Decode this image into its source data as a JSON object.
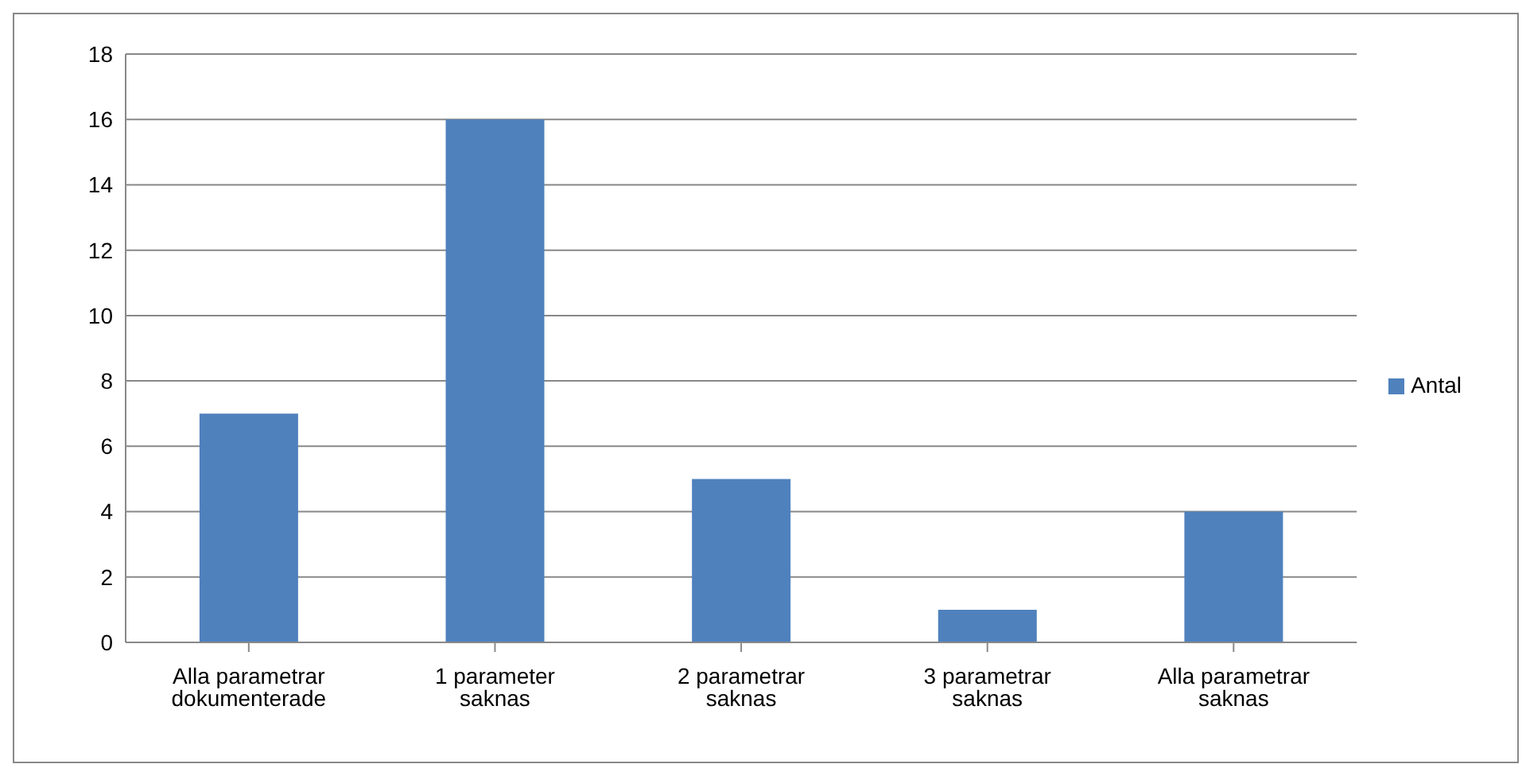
{
  "chart_data": {
    "type": "bar",
    "categories": [
      "Alla parametrar dokumenterade",
      "1 parameter saknas",
      "2 parametrar saknas",
      "3 parametrar saknas",
      "Alla parametrar saknas"
    ],
    "series": [
      {
        "name": "Antal",
        "color": "#4f81bd",
        "values": [
          7,
          16,
          5,
          1,
          4
        ]
      }
    ],
    "ylim": [
      0,
      18
    ],
    "yticks": [
      0,
      2,
      4,
      6,
      8,
      10,
      12,
      14,
      16,
      18
    ],
    "grid": "y",
    "legend": "right"
  }
}
